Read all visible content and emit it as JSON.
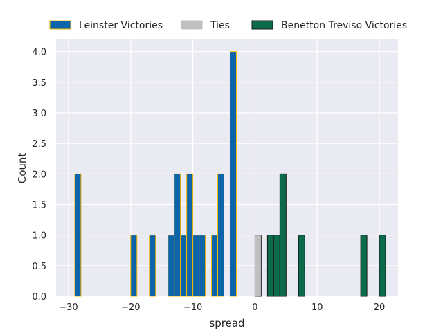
{
  "chart_data": {
    "type": "bar",
    "xlabel": "spread",
    "ylabel": "Count",
    "xlim": [
      -32,
      23
    ],
    "ylim": [
      0,
      4.2
    ],
    "x_ticks": [
      -30,
      -20,
      -10,
      0,
      10,
      20
    ],
    "y_ticks": [
      0.0,
      0.5,
      1.0,
      1.5,
      2.0,
      2.5,
      3.0,
      3.5,
      4.0
    ],
    "x_tick_labels": [
      "−30",
      "−20",
      "−10",
      "0",
      "10",
      "20"
    ],
    "y_tick_labels": [
      "0.0",
      "0.5",
      "1.0",
      "1.5",
      "2.0",
      "2.5",
      "3.0",
      "3.5",
      "4.0"
    ],
    "grid": true,
    "legend_placement": "top",
    "bin_width": 1,
    "series": [
      {
        "name": "Leinster Victories",
        "fill": "#0e64a8",
        "edge": "#f2b705",
        "bins": [
          {
            "x": -29,
            "count": 2
          },
          {
            "x": -20,
            "count": 1
          },
          {
            "x": -17,
            "count": 1
          },
          {
            "x": -14,
            "count": 1
          },
          {
            "x": -13,
            "count": 2
          },
          {
            "x": -12,
            "count": 1
          },
          {
            "x": -11,
            "count": 2
          },
          {
            "x": -10,
            "count": 1
          },
          {
            "x": -9,
            "count": 1
          },
          {
            "x": -7,
            "count": 1
          },
          {
            "x": -6,
            "count": 2
          },
          {
            "x": -4,
            "count": 4
          }
        ]
      },
      {
        "name": "Ties",
        "fill": "#c0c0c0",
        "edge": "#303030",
        "bins": [
          {
            "x": 0,
            "count": 1
          }
        ]
      },
      {
        "name": "Benetton Treviso Victories",
        "fill": "#0b6b4b",
        "edge": "#1a1a1a",
        "bins": [
          {
            "x": 2,
            "count": 1
          },
          {
            "x": 3,
            "count": 1
          },
          {
            "x": 4,
            "count": 2
          },
          {
            "x": 7,
            "count": 1
          },
          {
            "x": 17,
            "count": 1
          },
          {
            "x": 20,
            "count": 1
          }
        ]
      }
    ]
  },
  "colors": {
    "plot_background": "#eaeaf2",
    "grid": "#ffffff",
    "text": "#262626"
  }
}
